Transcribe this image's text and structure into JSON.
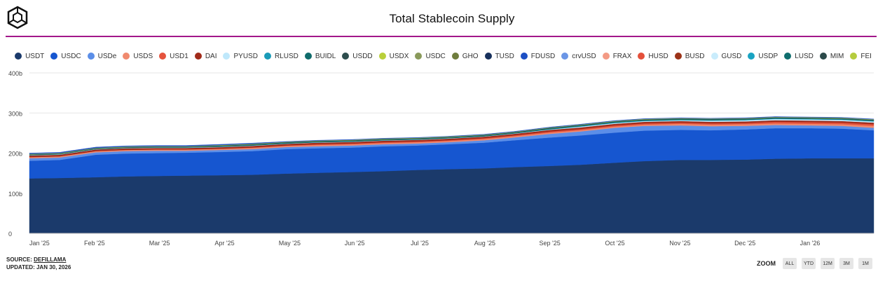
{
  "header": {
    "title": "Total Stablecoin Supply",
    "logo_icon": "cube-outline-icon"
  },
  "footer": {
    "source_label": "SOURCE:",
    "source_name": "DEFILLAMA",
    "updated": "UPDATED: JAN 30, 2026"
  },
  "zoom": {
    "label": "ZOOM",
    "buttons": [
      "ALL",
      "YTD",
      "12M",
      "3M",
      "1M"
    ]
  },
  "chart_data": {
    "type": "area",
    "stacked": true,
    "title": "Total Stablecoin Supply",
    "xlabel": "",
    "ylabel": "",
    "ylim": [
      0,
      400
    ],
    "y_ticks": [
      0,
      100,
      200,
      300,
      400
    ],
    "y_tick_labels": [
      "0",
      "100b",
      "200b",
      "300b",
      "400b"
    ],
    "x_tick_labels": [
      "Jan '25",
      "Feb '25",
      "Mar '25",
      "Apr '25",
      "May '25",
      "Jun '25",
      "Jul '25",
      "Aug '25",
      "Sep '25",
      "Oct '25",
      "Nov '25",
      "Dec '25",
      "Jan '26"
    ],
    "grid": true,
    "legend_position": "top",
    "units": "billions USD",
    "x": [
      "2025-01-01",
      "2025-01-15",
      "2025-02-01",
      "2025-02-15",
      "2025-03-01",
      "2025-03-15",
      "2025-04-01",
      "2025-04-15",
      "2025-05-01",
      "2025-05-15",
      "2025-06-01",
      "2025-06-15",
      "2025-07-01",
      "2025-07-15",
      "2025-08-01",
      "2025-08-15",
      "2025-09-01",
      "2025-09-15",
      "2025-10-01",
      "2025-10-15",
      "2025-11-01",
      "2025-11-15",
      "2025-12-01",
      "2025-12-15",
      "2026-01-01",
      "2026-01-15",
      "2026-01-30"
    ],
    "series": [
      {
        "name": "USDT",
        "color": "#1b3a6b",
        "values": [
          137,
          138,
          140,
          142,
          143,
          144,
          145,
          146,
          149,
          151,
          153,
          155,
          158,
          160,
          162,
          165,
          168,
          171,
          176,
          180,
          183,
          183,
          184,
          186,
          187,
          187,
          187
        ]
      },
      {
        "name": "USDC",
        "color": "#1656d0",
        "values": [
          44,
          45,
          56,
          57,
          57,
          57,
          58,
          59,
          61,
          61,
          61,
          62,
          61,
          62,
          64,
          67,
          71,
          73,
          75,
          76,
          75,
          74,
          75,
          76,
          75,
          74,
          70
        ]
      },
      {
        "name": "USDe",
        "color": "#5b8ee8",
        "values": [
          6,
          6,
          6,
          6,
          6,
          5,
          5,
          5,
          5,
          5,
          5,
          5,
          5,
          5,
          6,
          7,
          9,
          10,
          12,
          12,
          11,
          10,
          9,
          8,
          7,
          7,
          6
        ]
      },
      {
        "name": "USDS",
        "color": "#f08a6e",
        "values": [
          3,
          3,
          3,
          3,
          3,
          3,
          3,
          3,
          3,
          3,
          3,
          3,
          3,
          3,
          3,
          3,
          3,
          3,
          3,
          3,
          4,
          4,
          4,
          4,
          4,
          4,
          5
        ]
      },
      {
        "name": "USD1",
        "color": "#e5533d",
        "values": [
          0,
          0,
          0,
          0,
          0,
          0,
          0,
          1,
          1,
          2,
          2,
          2,
          2,
          2,
          2,
          2,
          3,
          3,
          3,
          3,
          3,
          3,
          3,
          4,
          4,
          4,
          4
        ]
      },
      {
        "name": "DAI",
        "color": "#a12b1a",
        "values": [
          4,
          4,
          4,
          4,
          4,
          4,
          4,
          4,
          4,
          4,
          4,
          4,
          4,
          4,
          4,
          4,
          4,
          4,
          4,
          4,
          4,
          4,
          4,
          4,
          4,
          4,
          4
        ]
      },
      {
        "name": "PYUSD",
        "color": "#bfe8fb",
        "values": [
          1,
          1,
          1,
          1,
          1,
          1,
          1,
          1,
          1,
          1,
          1,
          1,
          1,
          1,
          1,
          1,
          1,
          2,
          2,
          2,
          2,
          3,
          3,
          3,
          3,
          3,
          3
        ]
      },
      {
        "name": "RLUSD",
        "color": "#1a9bb8",
        "values": [
          0,
          0,
          0,
          0,
          0,
          0,
          0,
          0,
          0,
          0,
          0,
          0,
          0,
          0,
          0,
          0,
          1,
          1,
          1,
          1,
          1,
          1,
          1,
          1,
          1,
          1,
          1
        ]
      },
      {
        "name": "BUIDL",
        "color": "#0f6b6b",
        "values": [
          1,
          1,
          1,
          1,
          1,
          1,
          2,
          2,
          2,
          2,
          2,
          2,
          2,
          2,
          2,
          2,
          2,
          2,
          2,
          2,
          2,
          2,
          2,
          2,
          2,
          2,
          2
        ]
      },
      {
        "name": "USDD",
        "color": "#2e4e4e",
        "values": [
          1,
          1,
          1,
          1,
          1,
          1,
          1,
          1,
          1,
          1,
          1,
          1,
          1,
          1,
          1,
          1,
          1,
          1,
          1,
          1,
          1,
          1,
          1,
          1,
          1,
          1,
          1
        ]
      },
      {
        "name": "USDX",
        "color": "#b9cf3a",
        "values": [
          1,
          1,
          1,
          1,
          1,
          1,
          1,
          1,
          1,
          1,
          1,
          1,
          1,
          1,
          1,
          1,
          1,
          1,
          1,
          1,
          1,
          1,
          1,
          1,
          1,
          1,
          1
        ]
      },
      {
        "name": "USDC",
        "color": "#8a9a5b",
        "values": [
          0,
          0,
          0,
          0,
          0,
          0,
          0,
          0,
          0,
          0,
          0,
          0,
          0,
          0,
          0,
          0,
          0,
          0,
          0,
          0,
          0,
          0,
          0,
          0,
          0,
          0,
          0
        ]
      },
      {
        "name": "GHO",
        "color": "#6f7d3d",
        "values": [
          0,
          0,
          0,
          0,
          0,
          0,
          0,
          0,
          0,
          0,
          0,
          0,
          0,
          0,
          0,
          0,
          0,
          0,
          0,
          0,
          0,
          0,
          0,
          0,
          0,
          0,
          0
        ]
      },
      {
        "name": "TUSD",
        "color": "#17305c",
        "values": [
          0,
          0,
          0,
          0,
          0,
          0,
          0,
          0,
          0,
          0,
          0,
          0,
          0,
          0,
          0,
          0,
          0,
          0,
          0,
          0,
          0,
          0,
          0,
          0,
          0,
          0,
          0
        ]
      },
      {
        "name": "FDUSD",
        "color": "#1c4fc4",
        "values": [
          2,
          2,
          2,
          2,
          2,
          2,
          2,
          2,
          1,
          1,
          1,
          1,
          1,
          1,
          1,
          1,
          1,
          1,
          1,
          1,
          1,
          1,
          1,
          1,
          1,
          1,
          1
        ]
      },
      {
        "name": "crvUSD",
        "color": "#6b96e6",
        "values": [
          0,
          0,
          0,
          0,
          0,
          0,
          0,
          0,
          0,
          0,
          0,
          0,
          0,
          0,
          0,
          0,
          0,
          0,
          0,
          0,
          0,
          0,
          0,
          0,
          0,
          0,
          0
        ]
      },
      {
        "name": "FRAX",
        "color": "#f39a84",
        "values": [
          0,
          0,
          0,
          0,
          0,
          0,
          0,
          0,
          0,
          0,
          0,
          0,
          0,
          0,
          0,
          0,
          0,
          0,
          0,
          0,
          0,
          0,
          0,
          0,
          0,
          0,
          0
        ]
      },
      {
        "name": "HUSD",
        "color": "#e4503a",
        "values": [
          0,
          0,
          0,
          0,
          0,
          0,
          0,
          0,
          0,
          0,
          0,
          0,
          0,
          0,
          0,
          0,
          0,
          0,
          0,
          0,
          0,
          0,
          0,
          0,
          0,
          0,
          0
        ]
      },
      {
        "name": "BUSD",
        "color": "#9c3318",
        "values": [
          0,
          0,
          0,
          0,
          0,
          0,
          0,
          0,
          0,
          0,
          0,
          0,
          0,
          0,
          0,
          0,
          0,
          0,
          0,
          0,
          0,
          0,
          0,
          0,
          0,
          0,
          0
        ]
      },
      {
        "name": "GUSD",
        "color": "#c9ecfc",
        "values": [
          0,
          0,
          0,
          0,
          0,
          0,
          0,
          0,
          0,
          0,
          0,
          0,
          0,
          0,
          0,
          0,
          0,
          0,
          0,
          0,
          0,
          0,
          0,
          0,
          0,
          0,
          0
        ]
      },
      {
        "name": "USDP",
        "color": "#19a3c2",
        "values": [
          0,
          0,
          0,
          0,
          0,
          0,
          0,
          0,
          0,
          0,
          0,
          0,
          0,
          0,
          0,
          0,
          0,
          0,
          0,
          0,
          0,
          0,
          0,
          0,
          0,
          0,
          0
        ]
      },
      {
        "name": "LUSD",
        "color": "#0f6e6e",
        "values": [
          0,
          0,
          0,
          0,
          0,
          0,
          0,
          0,
          0,
          0,
          0,
          0,
          0,
          0,
          0,
          0,
          0,
          0,
          0,
          0,
          0,
          0,
          0,
          0,
          0,
          0,
          0
        ]
      },
      {
        "name": "MIM",
        "color": "#2c4a4a",
        "values": [
          0,
          0,
          0,
          0,
          0,
          0,
          0,
          0,
          0,
          0,
          0,
          0,
          0,
          0,
          0,
          0,
          0,
          0,
          0,
          0,
          0,
          0,
          0,
          0,
          0,
          0,
          0
        ]
      },
      {
        "name": "FEI",
        "color": "#b5cc3e",
        "values": [
          0,
          0,
          0,
          0,
          0,
          0,
          0,
          0,
          0,
          0,
          0,
          0,
          0,
          0,
          0,
          0,
          0,
          0,
          0,
          0,
          0,
          0,
          0,
          0,
          0,
          0,
          0
        ]
      }
    ]
  }
}
